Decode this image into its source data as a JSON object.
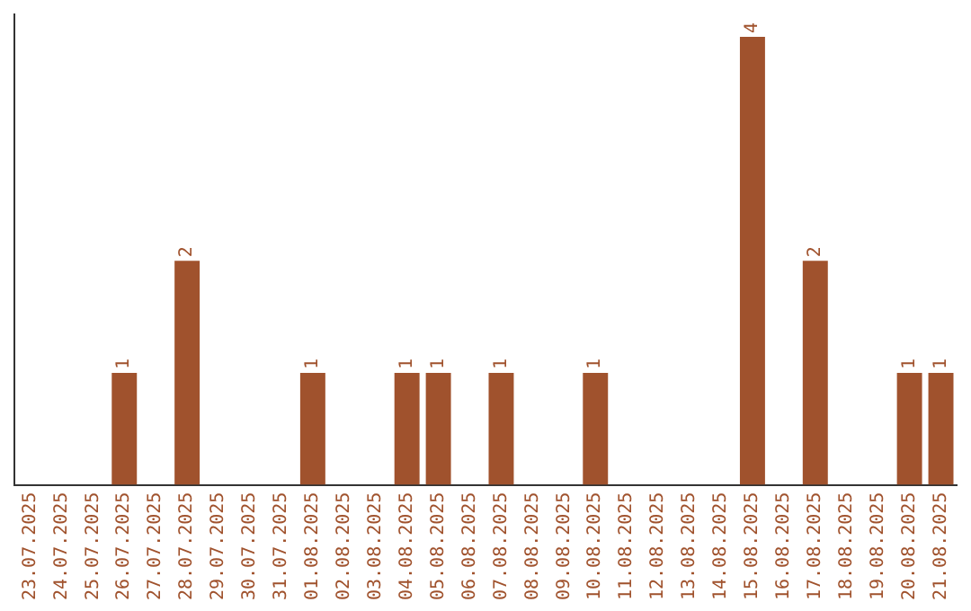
{
  "chart_data": {
    "type": "bar",
    "categories": [
      "23.07.2025",
      "24.07.2025",
      "25.07.2025",
      "26.07.2025",
      "27.07.2025",
      "28.07.2025",
      "29.07.2025",
      "30.07.2025",
      "31.07.2025",
      "01.08.2025",
      "02.08.2025",
      "03.08.2025",
      "04.08.2025",
      "05.08.2025",
      "06.08.2025",
      "07.08.2025",
      "08.08.2025",
      "09.08.2025",
      "10.08.2025",
      "11.08.2025",
      "12.08.2025",
      "13.08.2025",
      "14.08.2025",
      "15.08.2025",
      "16.08.2025",
      "17.08.2025",
      "18.08.2025",
      "19.08.2025",
      "20.08.2025",
      "21.08.2025"
    ],
    "values": [
      0,
      0,
      0,
      1,
      0,
      2,
      0,
      0,
      0,
      1,
      0,
      0,
      1,
      1,
      0,
      1,
      0,
      0,
      1,
      0,
      0,
      0,
      0,
      4,
      0,
      2,
      0,
      0,
      1,
      1
    ],
    "value_labels": [
      null,
      null,
      null,
      "1",
      null,
      "2",
      null,
      null,
      null,
      "1",
      null,
      null,
      "1",
      "1",
      null,
      "1",
      null,
      null,
      "1",
      null,
      null,
      null,
      null,
      "4",
      null,
      "2",
      null,
      null,
      "1",
      "1"
    ],
    "color": "#a0522d",
    "ylim": [
      0,
      4.2
    ],
    "tick_labels": "x",
    "grid": false,
    "legend": false
  }
}
